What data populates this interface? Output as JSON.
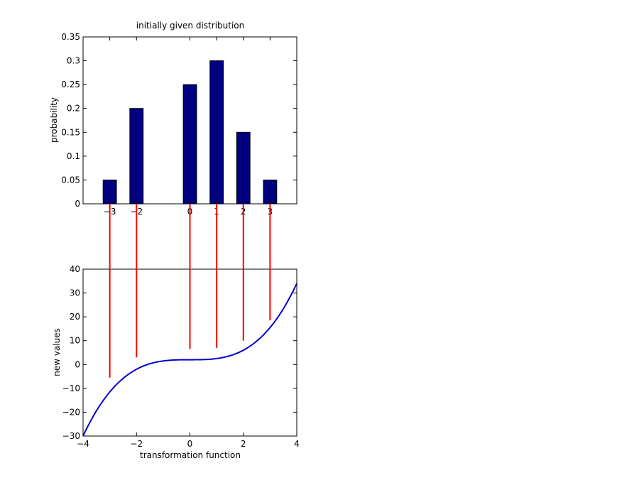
{
  "chart_data": [
    {
      "type": "bar",
      "title": "initially given distribution",
      "xlabel": "",
      "ylabel": "probability",
      "x": [
        -3,
        -2,
        0,
        1,
        2,
        3
      ],
      "values": [
        0.05,
        0.2,
        0.25,
        0.3,
        0.15,
        0.05
      ],
      "xlim": [
        -4,
        4
      ],
      "ylim": [
        0,
        0.35
      ],
      "xticks": [
        -3,
        -2,
        0,
        1,
        2,
        3
      ],
      "xtick_labels": [
        "−3",
        "−2",
        "0",
        "1",
        "2",
        "3"
      ],
      "yticks": [
        0,
        0.05,
        0.1,
        0.15,
        0.2,
        0.25,
        0.3,
        0.35
      ],
      "ytick_labels": [
        "0",
        "0.05",
        "0.1",
        "0.15",
        "0.2",
        "0.25",
        "0.3",
        "0.35"
      ],
      "bar_color": "#000080",
      "grid": false
    },
    {
      "type": "line",
      "title": "",
      "xlabel": "transformation function",
      "ylabel": "new values",
      "function": "0.5*x^3 + 2",
      "xlim": [
        -4,
        4
      ],
      "ylim": [
        -30,
        40
      ],
      "xticks": [
        -4,
        -2,
        0,
        2,
        4
      ],
      "xtick_labels": [
        "−4",
        "−2",
        "0",
        "2",
        "4"
      ],
      "yticks": [
        -30,
        -20,
        -10,
        0,
        10,
        20,
        30,
        40
      ],
      "ytick_labels": [
        "−30",
        "−20",
        "−10",
        "0",
        "10",
        "20",
        "30",
        "40"
      ],
      "line_color": "#0000cc",
      "grid": false
    }
  ],
  "connectors": {
    "color": "#ff0000",
    "lines": [
      {
        "x": -3,
        "y_end": -5.5
      },
      {
        "x": -2,
        "y_end": 3
      },
      {
        "x": 0,
        "y_end": 6.5
      },
      {
        "x": 1,
        "y_end": 7
      },
      {
        "x": 2,
        "y_end": 10
      },
      {
        "x": 3,
        "y_end": 18.5
      }
    ]
  }
}
